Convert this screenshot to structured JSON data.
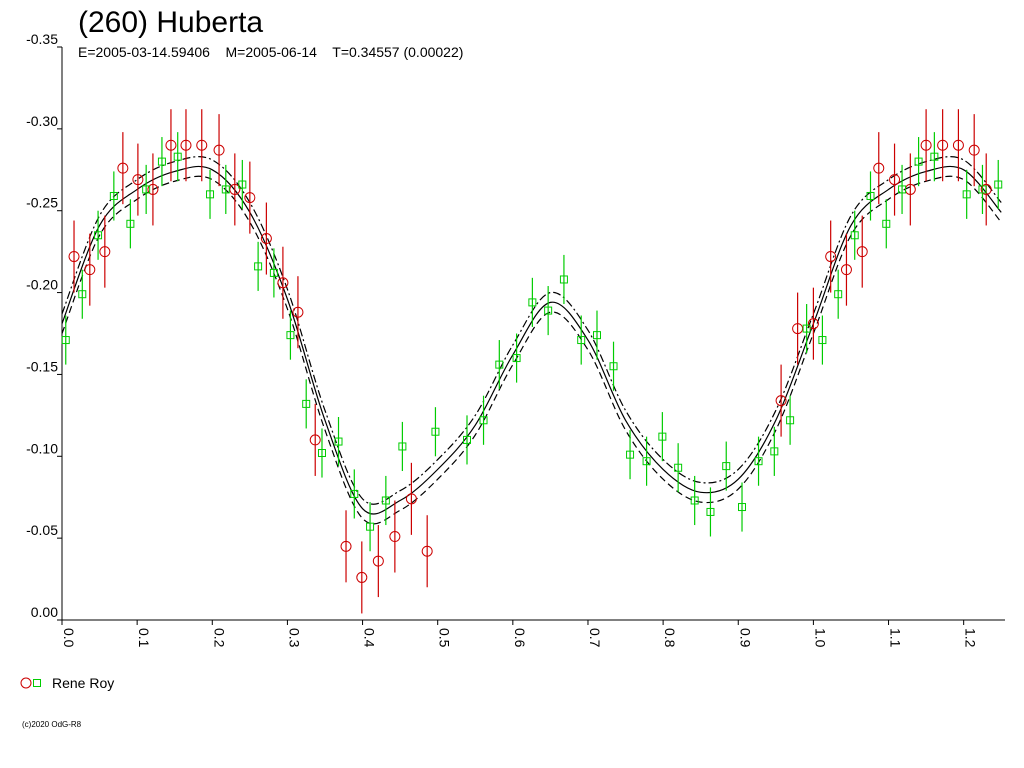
{
  "chart_data": {
    "type": "lightcurve",
    "title": "(260) Huberta",
    "subtitle": "E=2005-03-14.59406    M=2005-06-14    T=0.34557 (0.00022)",
    "footer": "(c)2020 OdG-R8",
    "xlim": [
      0,
      1.255
    ],
    "ylim": [
      0,
      -0.35
    ],
    "xticks": [
      {
        "value": 0,
        "label": "0.0"
      },
      0.1,
      0.2,
      0.3,
      0.4,
      0.5,
      0.6,
      0.7,
      0.8,
      0.9,
      {
        "value": 1,
        "label": "1.0"
      },
      1.1,
      1.2
    ],
    "yticks": [
      {
        "value": 0,
        "label": "0.00"
      },
      -0.05,
      {
        "value": -0.1,
        "label": "-0.10"
      },
      -0.15,
      {
        "value": -0.2,
        "label": "-0.20"
      },
      -0.25,
      {
        "value": -0.3,
        "label": "-0.30"
      },
      -0.35
    ],
    "series": [
      {
        "name": "Rene Roy",
        "color": "#cc0000",
        "marker": "circle",
        "error": 0.022,
        "x": [
          0.016,
          0.037,
          0.057,
          0.081,
          0.101,
          0.121,
          0.145,
          0.165,
          0.186,
          0.209,
          0.23,
          0.25,
          0.272,
          0.294,
          0.314,
          0.337,
          0.378,
          0.399,
          0.421,
          0.443,
          0.465,
          0.486,
          0.957,
          0.979,
          1.0,
          1.023,
          1.044,
          1.065,
          1.087,
          1.108,
          1.129,
          1.15,
          1.172,
          1.193,
          1.214,
          1.23
        ],
        "values": [
          -0.222,
          -0.214,
          -0.225,
          -0.276,
          -0.269,
          -0.263,
          -0.29,
          -0.29,
          -0.29,
          -0.287,
          -0.263,
          -0.258,
          -0.233,
          -0.206,
          -0.188,
          -0.11,
          -0.045,
          -0.026,
          -0.036,
          -0.051,
          -0.074,
          -0.042,
          -0.134,
          -0.178,
          -0.181,
          -0.222,
          -0.214,
          -0.225,
          -0.276,
          -0.269,
          -0.263,
          -0.29,
          -0.29,
          -0.29,
          -0.287,
          -0.263
        ]
      },
      {
        "color": "#00cc00",
        "marker": "square",
        "error": 0.015,
        "x": [
          0.005,
          0.027,
          0.048,
          0.069,
          0.091,
          0.112,
          0.133,
          0.154,
          0.197,
          0.218,
          0.24,
          0.261,
          0.282,
          0.304,
          0.325,
          0.346,
          0.368,
          0.389,
          0.41,
          0.431,
          0.453,
          0.497,
          0.539,
          0.561,
          0.582,
          0.605,
          0.626,
          0.647,
          0.668,
          0.691,
          0.712,
          0.734,
          0.756,
          0.778,
          0.799,
          0.82,
          0.842,
          0.863,
          0.884,
          0.905,
          0.927,
          0.948,
          0.969,
          0.991,
          1.012,
          1.033,
          1.055,
          1.076,
          1.097,
          1.118,
          1.14,
          1.161,
          1.204,
          1.225,
          1.246
        ],
        "values": [
          -0.171,
          -0.199,
          -0.235,
          -0.259,
          -0.242,
          -0.263,
          -0.28,
          -0.283,
          -0.26,
          -0.263,
          -0.266,
          -0.216,
          -0.212,
          -0.174,
          -0.132,
          -0.102,
          -0.109,
          -0.077,
          -0.057,
          -0.073,
          -0.106,
          -0.115,
          -0.11,
          -0.122,
          -0.156,
          -0.16,
          -0.194,
          -0.189,
          -0.208,
          -0.171,
          -0.174,
          -0.155,
          -0.101,
          -0.097,
          -0.112,
          -0.093,
          -0.073,
          -0.066,
          -0.094,
          -0.069,
          -0.097,
          -0.103,
          -0.122,
          -0.178,
          -0.171,
          -0.199,
          -0.235,
          -0.259,
          -0.242,
          -0.263,
          -0.28,
          -0.283,
          -0.26,
          -0.263,
          -0.266
        ]
      }
    ],
    "fit": {
      "color": "#000000",
      "error": 0.006,
      "x": [
        0,
        0.05,
        0.1,
        0.15,
        0.2,
        0.25,
        0.3,
        0.35,
        0.4,
        0.45,
        0.5,
        0.55,
        0.6,
        0.65,
        0.7,
        0.75,
        0.8,
        0.85,
        0.9,
        0.95,
        1.0,
        1.05,
        1.1,
        1.15,
        1.2,
        1.25
      ],
      "values": [
        -0.181,
        -0.241,
        -0.263,
        -0.274,
        -0.275,
        -0.249,
        -0.196,
        -0.122,
        -0.068,
        -0.073,
        -0.092,
        -0.119,
        -0.162,
        -0.194,
        -0.171,
        -0.122,
        -0.092,
        -0.078,
        -0.086,
        -0.122,
        -0.181,
        -0.241,
        -0.263,
        -0.274,
        -0.275,
        -0.249
      ]
    }
  }
}
